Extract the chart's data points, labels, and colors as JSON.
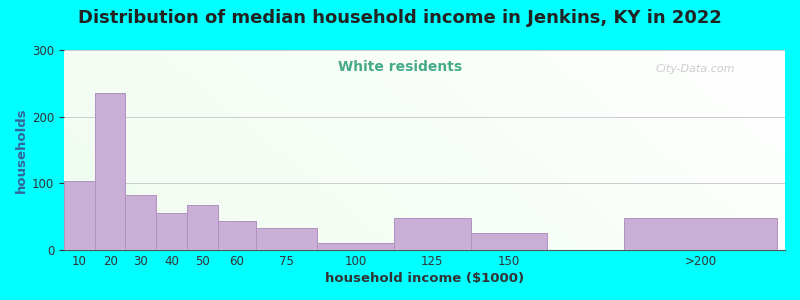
{
  "title": "Distribution of median household income in Jenkins, KY in 2022",
  "subtitle": "White residents",
  "xlabel": "household income ($1000)",
  "ylabel": "households",
  "title_fontsize": 13,
  "subtitle_fontsize": 10,
  "subtitle_color": "#44aa88",
  "bar_color": "#c9aed6",
  "bar_edge_color": "#b090c0",
  "background_outer": "#00ffff",
  "categories": [
    "10",
    "20",
    "30",
    "40",
    "50",
    "60",
    "75",
    "100",
    "125",
    "150",
    ">200"
  ],
  "values": [
    103,
    235,
    82,
    55,
    68,
    43,
    33,
    10,
    48,
    25,
    48
  ],
  "ylim": [
    0,
    300
  ],
  "yticks": [
    0,
    100,
    200,
    300
  ],
  "watermark": "City-Data.com",
  "bar_left_edges": [
    5,
    15,
    25,
    35,
    45,
    55,
    67.5,
    87.5,
    112.5,
    137.5,
    187.5
  ],
  "bar_widths": [
    10,
    10,
    10,
    10,
    10,
    12.5,
    20,
    25,
    25,
    25,
    50
  ]
}
